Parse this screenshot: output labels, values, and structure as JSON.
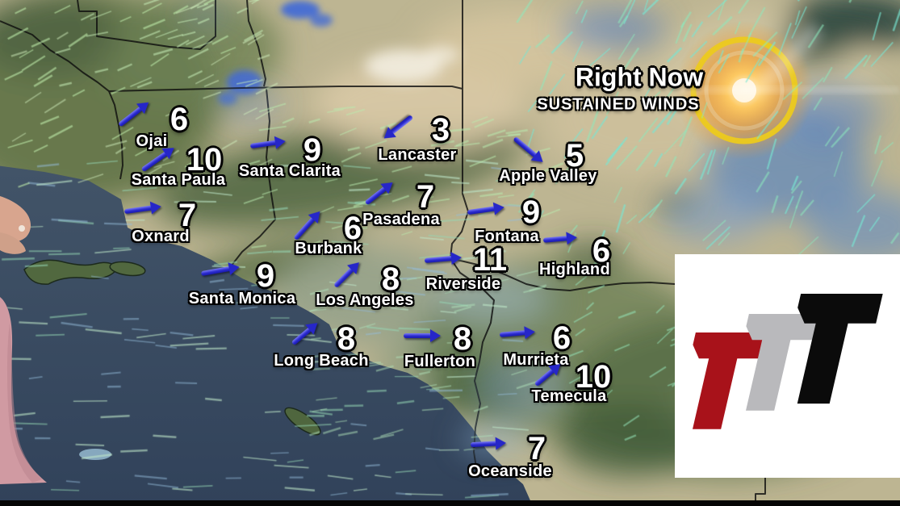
{
  "header": {
    "title": "Right Now",
    "subtitle": "SUSTAINED WINDS"
  },
  "map_data": {
    "type": "wind-map",
    "units_shown": "",
    "cities": [
      {
        "name": "Ojai",
        "value": "6",
        "num": [
          222,
          148
        ],
        "label": [
          188,
          175
        ],
        "arrow": [
          166,
          141,
          -38,
          46
        ]
      },
      {
        "name": "Santa Paula",
        "value": "10",
        "num": [
          253,
          198
        ],
        "label": [
          221,
          223
        ],
        "arrow": [
          196,
          197,
          -35,
          48
        ]
      },
      {
        "name": "Santa Clarita",
        "value": "9",
        "num": [
          387,
          186
        ],
        "label": [
          359,
          212
        ],
        "arrow": [
          332,
          178,
          -8,
          44
        ]
      },
      {
        "name": "Lancaster",
        "value": "3",
        "num": [
          546,
          161
        ],
        "label": [
          517,
          192
        ],
        "arrow": [
          493,
          158,
          142,
          44
        ]
      },
      {
        "name": "Apple Valley",
        "value": "5",
        "num": [
          712,
          193
        ],
        "label": [
          679,
          218
        ],
        "arrow": [
          655,
          186,
          40,
          46
        ]
      },
      {
        "name": "Oxnard",
        "value": "7",
        "num": [
          232,
          267
        ],
        "label": [
          199,
          293
        ],
        "arrow": [
          177,
          259,
          -8,
          46
        ]
      },
      {
        "name": "Burbank",
        "value": "6",
        "num": [
          437,
          283
        ],
        "label": [
          407,
          308
        ],
        "arrow": [
          381,
          279,
          -48,
          46
        ]
      },
      {
        "name": "Pasadena",
        "value": "7",
        "num": [
          527,
          244
        ],
        "label": [
          497,
          272
        ],
        "arrow": [
          470,
          239,
          -38,
          42
        ]
      },
      {
        "name": "Fontana",
        "value": "9",
        "num": [
          658,
          263
        ],
        "label": [
          628,
          293
        ],
        "arrow": [
          602,
          260,
          -8,
          46
        ]
      },
      {
        "name": "Highland",
        "value": "6",
        "num": [
          745,
          311
        ],
        "label": [
          712,
          334
        ],
        "arrow": [
          694,
          296,
          -5,
          42
        ]
      },
      {
        "name": "Riverside",
        "value": "11",
        "num": [
          607,
          322
        ],
        "label": [
          574,
          352
        ],
        "arrow": [
          549,
          321,
          -5,
          46
        ]
      },
      {
        "name": "Santa Monica",
        "value": "9",
        "num": [
          329,
          342
        ],
        "label": [
          300,
          370
        ],
        "arrow": [
          273,
          335,
          -10,
          48
        ]
      },
      {
        "name": "Los Angeles",
        "value": "8",
        "num": [
          484,
          346
        ],
        "label": [
          452,
          372
        ],
        "arrow": [
          430,
          340,
          -45,
          42
        ]
      },
      {
        "name": "Long Beach",
        "value": "8",
        "num": [
          429,
          420
        ],
        "label": [
          398,
          447
        ],
        "arrow": [
          378,
          413,
          -40,
          40
        ]
      },
      {
        "name": "Fullerton",
        "value": "8",
        "num": [
          573,
          420
        ],
        "label": [
          545,
          448
        ],
        "arrow": [
          523,
          416,
          0,
          46
        ]
      },
      {
        "name": "Murrieta",
        "value": "6",
        "num": [
          696,
          419
        ],
        "label": [
          664,
          446
        ],
        "arrow": [
          641,
          413,
          -5,
          44
        ]
      },
      {
        "name": "Temecula",
        "value": "10",
        "num": [
          735,
          467
        ],
        "label": [
          705,
          491
        ],
        "arrow": [
          679,
          464,
          -40,
          40
        ]
      },
      {
        "name": "Oceanside",
        "value": "7",
        "num": [
          665,
          556
        ],
        "label": [
          632,
          584
        ],
        "arrow": [
          605,
          550,
          -3,
          44
        ]
      }
    ]
  },
  "logo": {
    "background": "#ffffff",
    "red": "#a8121a",
    "gray": "#b9b9bc",
    "black": "#0b0b0b"
  },
  "colors": {
    "arrow_blue": "#2a2ace",
    "text_white": "#ffffff",
    "ocean": "#3c4d60"
  }
}
